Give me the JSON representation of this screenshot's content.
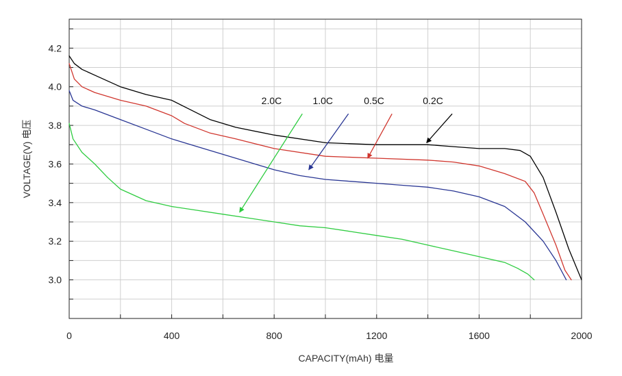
{
  "chart_data": {
    "type": "line",
    "title": "",
    "xlabel": "CAPACITY(mAh) 电量",
    "ylabel": "VOLTAGE(V) 电压",
    "xlim": [
      0,
      2000
    ],
    "ylim": [
      2.8,
      4.35
    ],
    "x_ticks": [
      0,
      400,
      800,
      1200,
      1600,
      2000
    ],
    "x_tick_labels": [
      "0",
      "400",
      "800",
      "1200",
      "1600",
      "2000"
    ],
    "x_grid": [
      0,
      200,
      400,
      600,
      800,
      1000,
      1200,
      1400,
      1600,
      1800,
      2000
    ],
    "y_ticks": [
      3.0,
      3.2,
      3.4,
      3.6,
      3.8,
      4.0,
      4.2
    ],
    "y_tick_labels": [
      "3.0",
      "3.2",
      "3.4",
      "3.6",
      "3.8",
      "4.0",
      "4.2"
    ],
    "y_grid": [
      2.9,
      3.0,
      3.1,
      3.2,
      3.3,
      3.4,
      3.5,
      3.6,
      3.7,
      3.8,
      3.9,
      4.0,
      4.1,
      4.2,
      4.3
    ],
    "grid": true,
    "series": [
      {
        "name": "0.2C",
        "color": "#000000",
        "label_at": [
          1420,
          3.91
        ],
        "arrow_from": [
          1495,
          3.86
        ],
        "arrow_to": [
          1395,
          3.71
        ],
        "x": [
          0,
          20,
          50,
          100,
          200,
          300,
          400,
          460,
          550,
          650,
          800,
          1000,
          1200,
          1400,
          1500,
          1600,
          1700,
          1760,
          1800,
          1850,
          1900,
          1950,
          2000
        ],
        "y": [
          4.16,
          4.12,
          4.09,
          4.06,
          4.0,
          3.96,
          3.93,
          3.89,
          3.83,
          3.79,
          3.75,
          3.71,
          3.7,
          3.7,
          3.69,
          3.68,
          3.68,
          3.67,
          3.64,
          3.53,
          3.35,
          3.16,
          3.0
        ]
      },
      {
        "name": "0.5C",
        "color": "#d0362e",
        "label_at": [
          1190,
          3.91
        ],
        "arrow_from": [
          1260,
          3.86
        ],
        "arrow_to": [
          1165,
          3.63
        ],
        "x": [
          0,
          20,
          50,
          100,
          200,
          300,
          400,
          450,
          550,
          650,
          800,
          1000,
          1200,
          1400,
          1500,
          1600,
          1700,
          1780,
          1815,
          1850,
          1900,
          1935,
          1960
        ],
        "y": [
          4.12,
          4.04,
          4.0,
          3.97,
          3.93,
          3.9,
          3.85,
          3.81,
          3.76,
          3.73,
          3.68,
          3.64,
          3.63,
          3.62,
          3.61,
          3.59,
          3.55,
          3.51,
          3.45,
          3.34,
          3.18,
          3.05,
          3.0
        ]
      },
      {
        "name": "1.0C",
        "color": "#283593",
        "label_at": [
          990,
          3.91
        ],
        "arrow_from": [
          1090,
          3.86
        ],
        "arrow_to": [
          935,
          3.57
        ],
        "x": [
          0,
          15,
          50,
          100,
          200,
          300,
          400,
          500,
          600,
          700,
          800,
          900,
          1000,
          1100,
          1200,
          1300,
          1400,
          1500,
          1600,
          1700,
          1780,
          1850,
          1900,
          1940
        ],
        "y": [
          3.98,
          3.93,
          3.9,
          3.88,
          3.83,
          3.78,
          3.73,
          3.69,
          3.65,
          3.61,
          3.57,
          3.54,
          3.52,
          3.51,
          3.5,
          3.49,
          3.48,
          3.46,
          3.43,
          3.38,
          3.3,
          3.2,
          3.1,
          3.0
        ]
      },
      {
        "name": "2.0C",
        "color": "#2ecc40",
        "label_at": [
          790,
          3.91
        ],
        "arrow_from": [
          910,
          3.86
        ],
        "arrow_to": [
          665,
          3.35
        ],
        "x": [
          0,
          15,
          50,
          100,
          150,
          200,
          300,
          400,
          500,
          600,
          700,
          800,
          900,
          1000,
          1100,
          1200,
          1300,
          1400,
          1500,
          1600,
          1700,
          1750,
          1790,
          1815
        ],
        "y": [
          3.81,
          3.73,
          3.66,
          3.6,
          3.53,
          3.47,
          3.41,
          3.38,
          3.36,
          3.34,
          3.32,
          3.3,
          3.28,
          3.27,
          3.25,
          3.23,
          3.21,
          3.18,
          3.15,
          3.12,
          3.09,
          3.06,
          3.03,
          3.0
        ]
      }
    ]
  }
}
